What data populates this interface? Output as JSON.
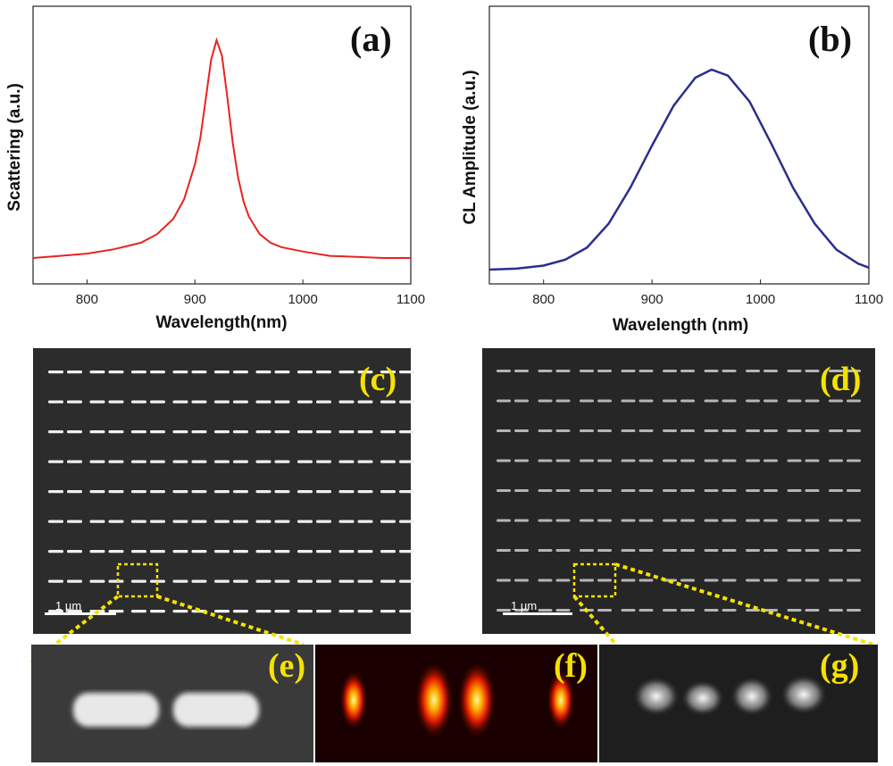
{
  "chart_data": [
    {
      "type": "line",
      "panel_label": "(a)",
      "xlabel": "Wavelength(nm)",
      "ylabel": "Scattering (a.u.)",
      "xlim": [
        750,
        1100
      ],
      "xticks": [
        "800",
        "900",
        "1000",
        "1100"
      ],
      "series": [
        {
          "color": "#e8231f",
          "x": [
            750,
            775,
            800,
            825,
            850,
            865,
            880,
            890,
            900,
            905,
            910,
            915,
            920,
            925,
            930,
            935,
            940,
            945,
            950,
            960,
            970,
            980,
            1000,
            1025,
            1050,
            1075,
            1100
          ],
          "y": [
            0.0,
            0.01,
            0.02,
            0.04,
            0.07,
            0.11,
            0.18,
            0.27,
            0.43,
            0.55,
            0.73,
            0.91,
            1.0,
            0.93,
            0.74,
            0.53,
            0.37,
            0.26,
            0.19,
            0.11,
            0.07,
            0.05,
            0.03,
            0.01,
            0.005,
            0.0,
            0.0
          ]
        }
      ]
    },
    {
      "type": "line",
      "panel_label": "(b)",
      "xlabel": "Wavelength (nm)",
      "ylabel": "CL Amplitude (a.u.)",
      "xlim": [
        750,
        1100
      ],
      "xticks": [
        "800",
        "900",
        "1000",
        "1100"
      ],
      "series": [
        {
          "color": "#2a2f8c",
          "x": [
            750,
            775,
            800,
            820,
            840,
            860,
            880,
            900,
            920,
            940,
            955,
            970,
            990,
            1010,
            1030,
            1050,
            1070,
            1090,
            1100
          ],
          "y": [
            0.0,
            0.005,
            0.02,
            0.05,
            0.11,
            0.23,
            0.41,
            0.62,
            0.82,
            0.96,
            1.0,
            0.97,
            0.84,
            0.63,
            0.41,
            0.23,
            0.1,
            0.03,
            0.01
          ]
        }
      ]
    }
  ],
  "images": {
    "sem_label": "(c)",
    "cl_map_label": "(d)",
    "zoom_sem_label": "(e)",
    "sim_label": "(f)",
    "zoom_cl_label": "(g)",
    "scale_bar_c": "1 µm",
    "scale_bar_d": "1 µm"
  }
}
